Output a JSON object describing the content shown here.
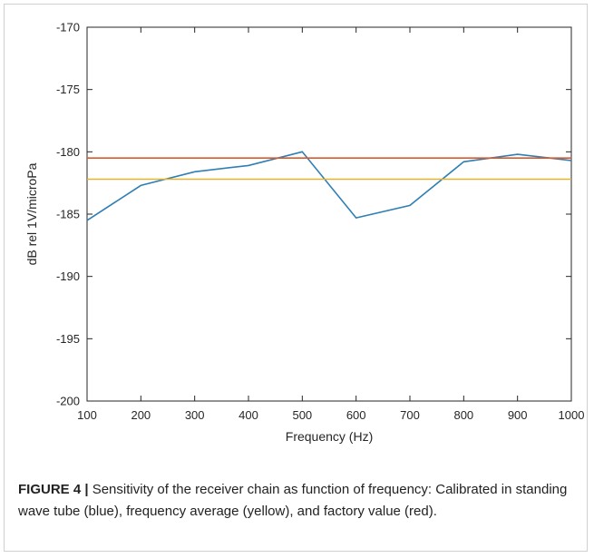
{
  "chart_data": {
    "type": "line",
    "xlabel": "Frequency (Hz)",
    "ylabel": "dB rel 1V/microPa",
    "xlim": [
      100,
      1000
    ],
    "ylim": [
      -200,
      -170
    ],
    "xticks": [
      100,
      200,
      300,
      400,
      500,
      600,
      700,
      800,
      900,
      1000
    ],
    "yticks": [
      -200,
      -195,
      -190,
      -185,
      -180,
      -175,
      -170
    ],
    "grid": false,
    "series": [
      {
        "color": "#2f7fb5",
        "x": [
          100,
          200,
          300,
          400,
          500,
          600,
          700,
          800,
          900,
          1000
        ],
        "y": [
          -185.5,
          -182.7,
          -181.6,
          -181.1,
          -180.0,
          -185.3,
          -184.3,
          -180.8,
          -180.2,
          -180.7
        ]
      },
      {
        "color": "#e2b32d",
        "x": [
          100,
          1000
        ],
        "y": [
          -182.2,
          -182.2
        ]
      },
      {
        "color": "#d95a2b",
        "x": [
          100,
          1000
        ],
        "y": [
          -180.5,
          -180.5
        ]
      }
    ]
  },
  "caption": {
    "label": "FIGURE 4 |",
    "text": " Sensitivity of the receiver chain as function of frequency: Calibrated in standing wave tube (blue), frequency average (yellow), and factory value (red)."
  }
}
